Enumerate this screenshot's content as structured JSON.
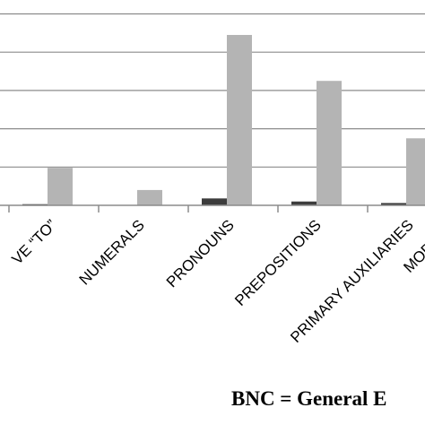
{
  "chart_data": {
    "type": "bar",
    "categories": [
      "INFINITIVE “TO”",
      "NUMERALS",
      "PRONOUNS",
      "PREPOSITIONS",
      "PRIMARY AUXILIARIES",
      "MODAL AUXILIARIES"
    ],
    "visible_tick_labels": [
      "VE “TO”",
      "NUMERALS",
      "PRONOUNS",
      "PREPOSITIONS",
      "PRIMARY AUXILIARIES",
      "MODAL A"
    ],
    "series": [
      {
        "values": [
          0.3,
          0.0,
          1.8,
          1.0,
          0.6,
          0.0
        ],
        "color": "#3c3c3c"
      },
      {
        "values": [
          9.8,
          4.0,
          44.5,
          32.5,
          17.5,
          0.0
        ],
        "color": "#b4b4b4"
      }
    ],
    "ylim": [
      0,
      50
    ],
    "gridlines": [
      0,
      10,
      20,
      30,
      40,
      50
    ],
    "grid": true,
    "colors": {
      "gridline": "#8c8c8c",
      "axis": "#8c8c8c"
    }
  },
  "footer": {
    "text": "BNC = General E"
  }
}
